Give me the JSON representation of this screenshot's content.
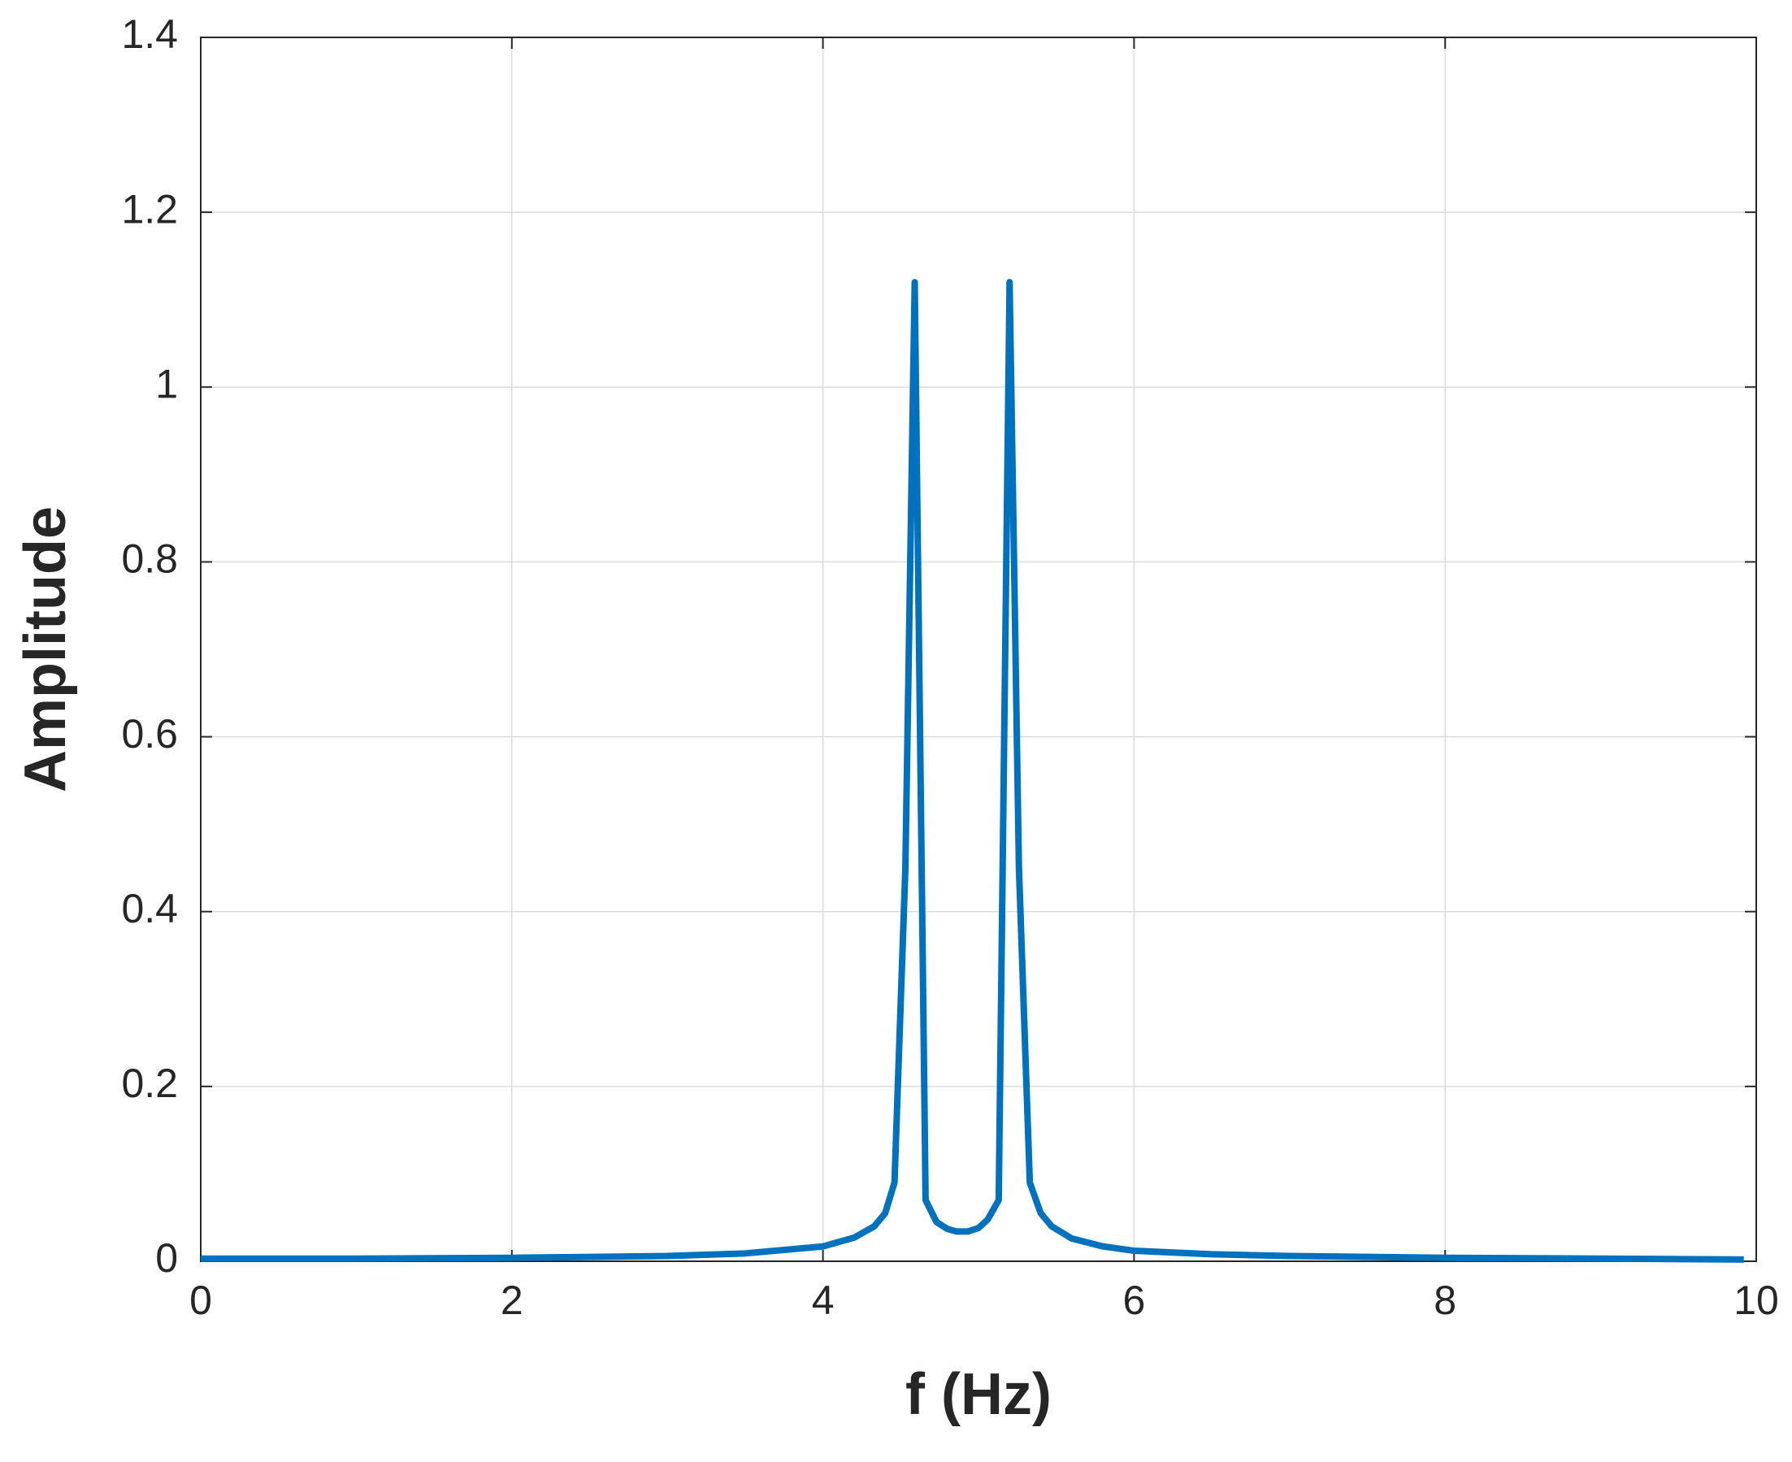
{
  "chart_data": {
    "type": "line",
    "x_label": "f (Hz)",
    "y_label": "Amplitude",
    "x": [
      0,
      1,
      2,
      3,
      3.5,
      4.0,
      4.2,
      4.33,
      4.4,
      4.46,
      4.53,
      4.59,
      4.66,
      4.73,
      4.8,
      4.86,
      4.93,
      5.0,
      5.06,
      5.13,
      5.2,
      5.26,
      5.33,
      5.4,
      5.47,
      5.6,
      5.8,
      6.0,
      6.5,
      7,
      8,
      9,
      9.92
    ],
    "series": [
      {
        "color": "#0072bd",
        "values": [
          0.003,
          0.003,
          0.004,
          0.006,
          0.009,
          0.017,
          0.027,
          0.04,
          0.055,
          0.09,
          0.45,
          1.12,
          0.07,
          0.045,
          0.037,
          0.034,
          0.034,
          0.038,
          0.048,
          0.07,
          1.12,
          0.45,
          0.09,
          0.055,
          0.04,
          0.026,
          0.017,
          0.012,
          0.008,
          0.006,
          0.004,
          0.003,
          0.002
        ]
      }
    ],
    "xlim": [
      0,
      10
    ],
    "xticks": [
      0,
      2,
      4,
      6,
      8,
      10
    ],
    "ylim": [
      0,
      1.4
    ],
    "yticks": [
      0,
      0.2,
      0.4,
      0.6,
      0.8,
      1,
      1.2,
      1.4
    ],
    "grid": true
  }
}
